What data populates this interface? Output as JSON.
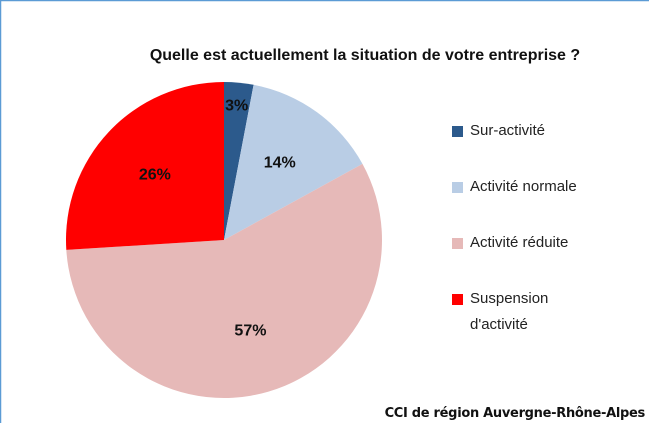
{
  "chart_data": {
    "type": "pie",
    "title": "Quelle est actuellement la situation de votre entreprise ?",
    "categories": [
      "Sur-activité",
      "Activité normale",
      "Activité réduite",
      "Suspension d'activité"
    ],
    "values": [
      3,
      14,
      57,
      26
    ],
    "value_labels": [
      "3%",
      "14%",
      "57%",
      "26%"
    ],
    "colors": [
      "#2c5a8c",
      "#b9cde5",
      "#e6b9b8",
      "#ff0000"
    ],
    "legend": "right",
    "annotation": "CCI de région Auvergne-Rhône-Alpes"
  }
}
